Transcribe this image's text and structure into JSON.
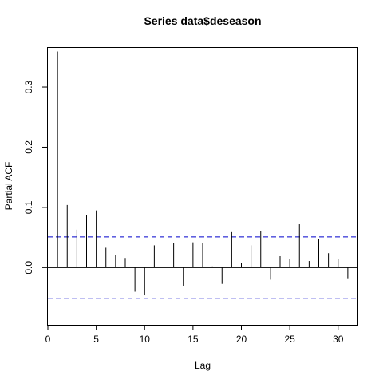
{
  "chart_data": {
    "type": "bar",
    "title": "Series  data$deseason",
    "xlabel": "Lag",
    "ylabel": "Partial ACF",
    "xlim": [
      0,
      32
    ],
    "ylim": [
      -0.095,
      0.365
    ],
    "x_ticks": [
      0,
      5,
      10,
      15,
      20,
      25,
      30
    ],
    "y_ticks": [
      0.0,
      0.1,
      0.2,
      0.3
    ],
    "y_tick_labels": [
      "0.0",
      "0.1",
      "0.2",
      "0.3"
    ],
    "confidence_limit": 0.051,
    "confidence_line_color": "#0000cc",
    "grid": false,
    "legend": "none",
    "series": [
      {
        "x": [
          1,
          2,
          3,
          4,
          5,
          6,
          7,
          8,
          9,
          10,
          11,
          12,
          13,
          14,
          15,
          16,
          17,
          18,
          19,
          20,
          21,
          22,
          23,
          24,
          25,
          26,
          27,
          28,
          29,
          30,
          31
        ],
        "values": [
          0.359,
          0.104,
          0.063,
          0.087,
          0.095,
          0.033,
          0.021,
          0.016,
          -0.04,
          -0.046,
          0.037,
          0.027,
          0.041,
          -0.03,
          0.042,
          0.041,
          0.002,
          -0.027,
          0.059,
          0.007,
          0.037,
          0.061,
          -0.02,
          0.019,
          0.014,
          0.072,
          0.011,
          0.047,
          0.024,
          0.014,
          -0.019
        ]
      }
    ]
  }
}
